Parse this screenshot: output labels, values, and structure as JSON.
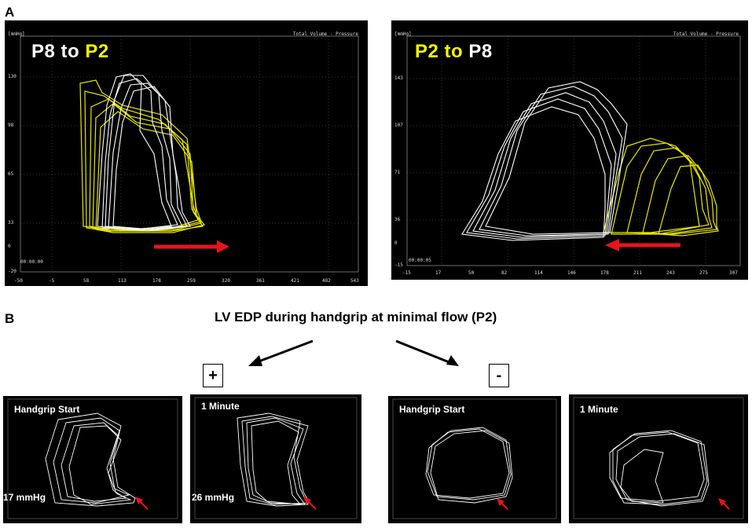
{
  "panel_a": {
    "letter": "A",
    "left": {
      "title_part1": "P8",
      "title_mid": " to ",
      "title_part2": "P2",
      "corner_label": "Total Volume - Pressure",
      "axis_unit": "[mmHg]",
      "time": "00:00:00",
      "y_ticks": [
        "130",
        "98",
        "65",
        "33",
        "0",
        "-20"
      ],
      "x_ticks": [
        "-50",
        "-5",
        "58",
        "113",
        "178",
        "259",
        "320",
        "361",
        "421",
        "482",
        "543"
      ]
    },
    "right": {
      "title_part1": "P2",
      "title_mid": " to ",
      "title_part2": "P8",
      "corner_label": "Total Volume - Pressure",
      "axis_unit": "[mmHg]",
      "time": "00:00:05",
      "y_ticks": [
        "143",
        "107",
        "71",
        "36",
        "0",
        "-15"
      ],
      "x_ticks": [
        "-15",
        "17",
        "50",
        "82",
        "114",
        "146",
        "178",
        "211",
        "243",
        "275",
        "307"
      ]
    }
  },
  "panel_b": {
    "letter": "B",
    "headline": "LV EDP during handgrip at minimal flow (P2)",
    "plus": "+",
    "minus": "-",
    "plots": [
      {
        "label": "Handgrip Start",
        "pressure": "17 mmHg"
      },
      {
        "label": "1 Minute",
        "pressure": "26 mmHg"
      },
      {
        "label": "Handgrip Start",
        "pressure": ""
      },
      {
        "label": "1 Minute",
        "pressure": ""
      }
    ]
  },
  "colors": {
    "yellow_trace": "#e8e800",
    "white_trace": "#ffffff",
    "arrow_red": "#e8141c"
  }
}
